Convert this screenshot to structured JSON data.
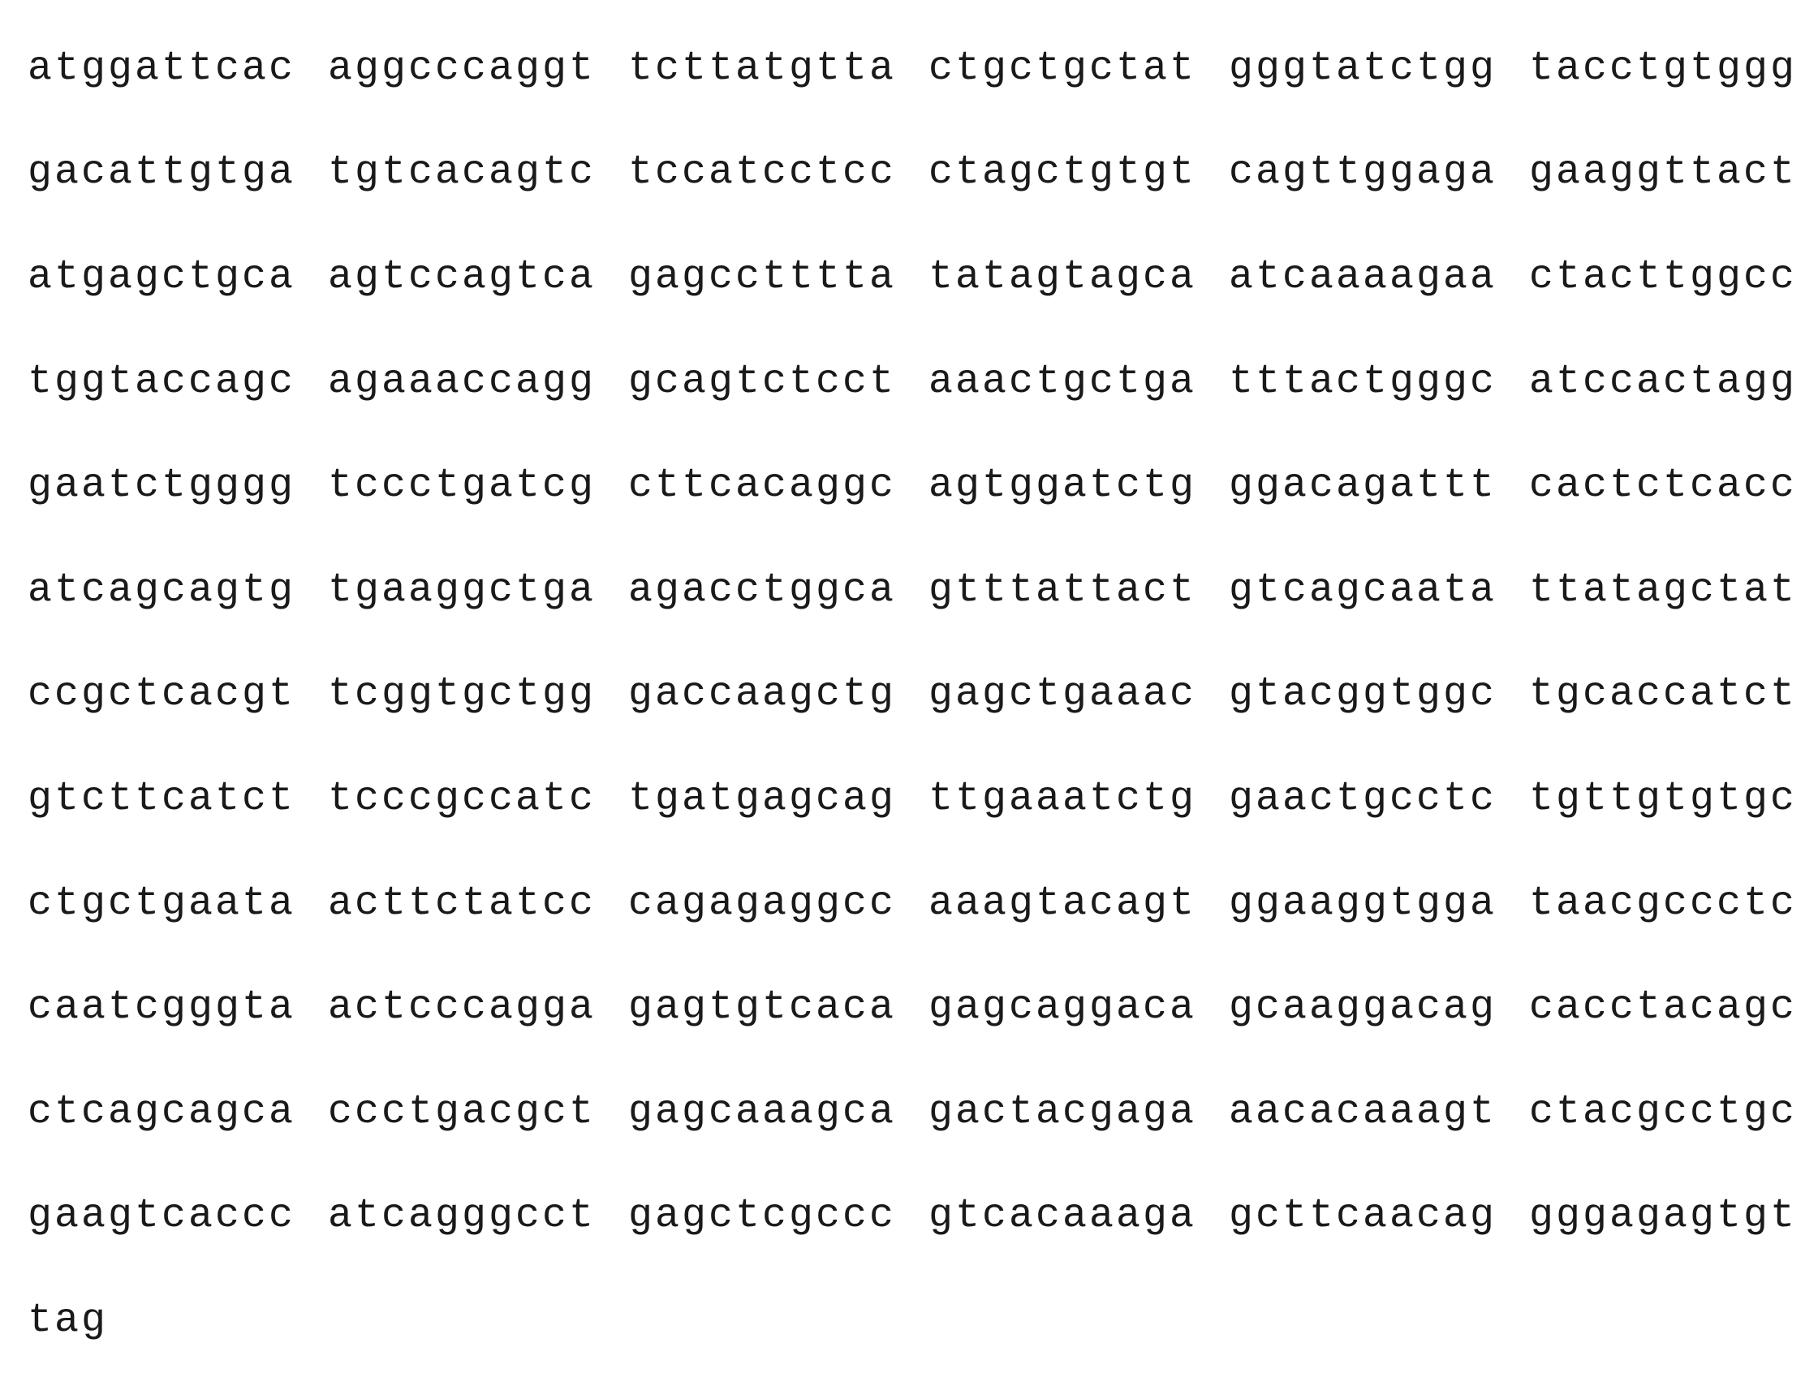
{
  "sequence": {
    "lines": [
      [
        "atggattcac",
        "aggcccaggt",
        "tcttatgtta",
        "ctgctgctat",
        "gggtatctgg",
        "tacctgtggg"
      ],
      [
        "gacattgtga",
        "tgtcacagtc",
        "tccatcctcc",
        "ctagctgtgt",
        "cagttggaga",
        "gaaggttact"
      ],
      [
        "atgagctgca",
        "agtccagtca",
        "gagcctttta",
        "tatagtagca",
        "atcaaaagaa",
        "ctacttggcc"
      ],
      [
        "tggtaccagc",
        "agaaaccagg",
        "gcagtctcct",
        "aaactgctga",
        "tttactgggc",
        "atccactagg"
      ],
      [
        "gaatctgggg",
        "tccctgatcg",
        "cttcacaggc",
        "agtggatctg",
        "ggacagattt",
        "cactctcacc"
      ],
      [
        "atcagcagtg",
        "tgaaggctga",
        "agacctggca",
        "gtttattact",
        "gtcagcaata",
        "ttatagctat"
      ],
      [
        "ccgctcacgt",
        "tcggtgctgg",
        "gaccaagctg",
        "gagctgaaac",
        "gtacggtggc",
        "tgcaccatct"
      ],
      [
        "gtcttcatct",
        "tcccgccatc",
        "tgatgagcag",
        "ttgaaatctg",
        "gaactgcctc",
        "tgttgtgtgc"
      ],
      [
        "ctgctgaata",
        "acttctatcc",
        "cagagaggcc",
        "aaagtacagt",
        "ggaaggtgga",
        "taacgccctc"
      ],
      [
        "caatcgggta",
        "actcccagga",
        "gagtgtcaca",
        "gagcaggaca",
        "gcaaggacag",
        "cacctacagc"
      ],
      [
        "ctcagcagca",
        "ccctgacgct",
        "gagcaaagca",
        "gactacgaga",
        "aacacaaagt",
        "ctacgcctgc"
      ],
      [
        "gaagtcaccc",
        "atcagggcct",
        "gagctcgccc",
        "gtcacaaaga",
        "gcttcaacag",
        "gggagagtgt"
      ],
      [
        "tag"
      ]
    ]
  }
}
